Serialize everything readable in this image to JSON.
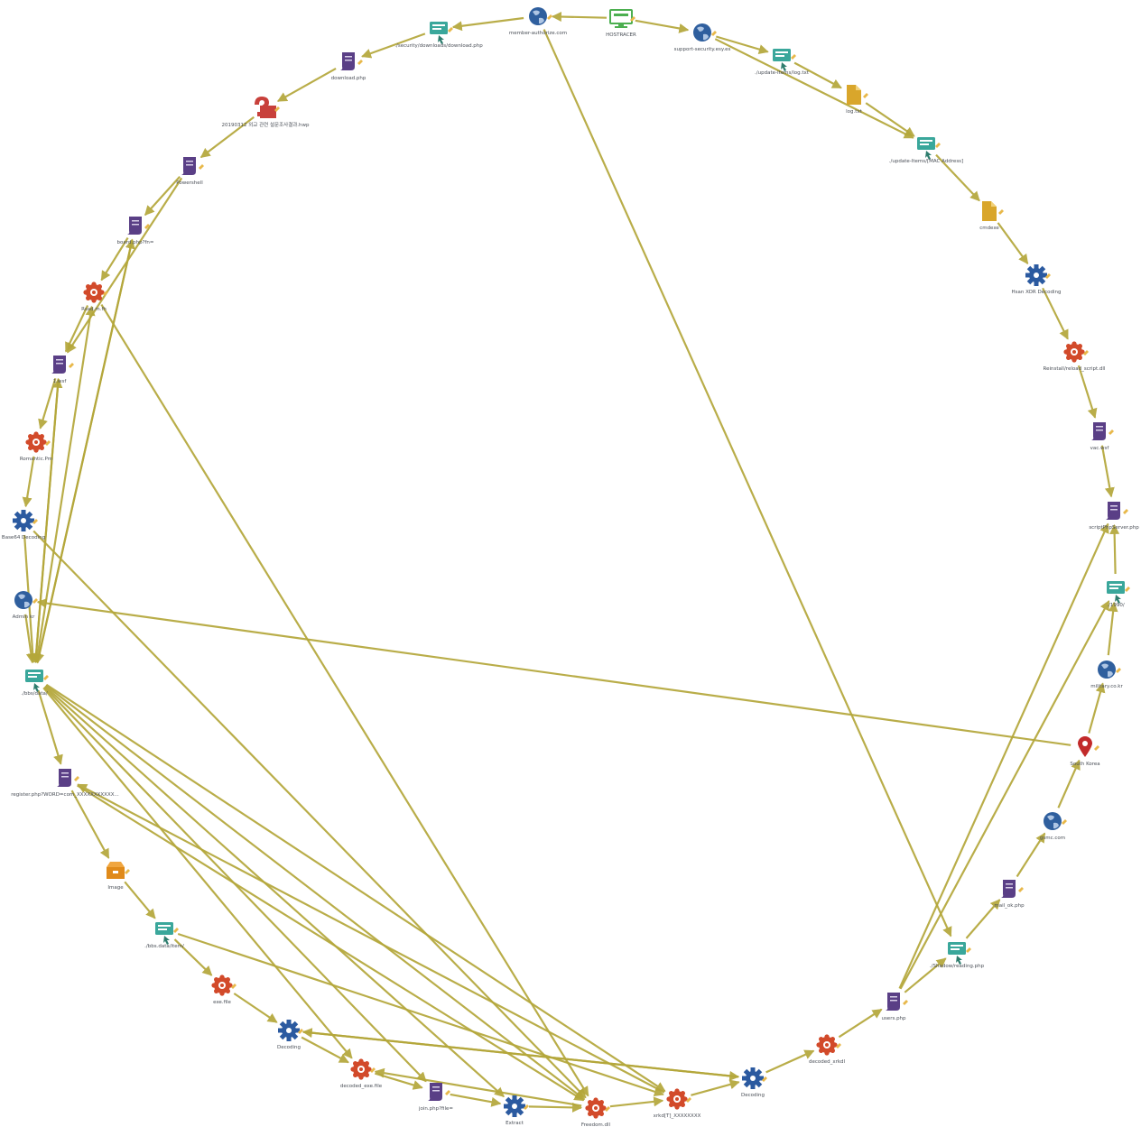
{
  "graph": {
    "nodes": [
      {
        "id": "hostracer",
        "label": "HOSTRACER",
        "icon": "monitor-icon"
      },
      {
        "id": "support",
        "label": "support-security.esy.es",
        "icon": "globe-icon"
      },
      {
        "id": "update_log",
        "label": "./update-Items/log.txt",
        "icon": "web-page-icon"
      },
      {
        "id": "log_txt",
        "label": "log.txt",
        "icon": "document-icon"
      },
      {
        "id": "update_mac",
        "label": "./update-Items/[MAC Address]",
        "icon": "web-page-icon"
      },
      {
        "id": "cmdtxt",
        "label": "cmdexe",
        "icon": "document-icon"
      },
      {
        "id": "xor_decoding",
        "label": "Hsan XOR Decoding",
        "icon": "gear-icon"
      },
      {
        "id": "reinstall",
        "label": "Reinstall/reload_script.dll",
        "icon": "malware-icon"
      },
      {
        "id": "vac_wsf",
        "label": "vac.wsf",
        "icon": "script-icon"
      },
      {
        "id": "scriptphp",
        "label": "scriptPhpServer.php",
        "icon": "script-icon"
      },
      {
        "id": "n1990",
        "label": "./1990/",
        "icon": "web-page-icon"
      },
      {
        "id": "military",
        "label": "military.co.kr",
        "icon": "globe-icon"
      },
      {
        "id": "south_korea",
        "label": "South Korea",
        "icon": "location-pin-icon"
      },
      {
        "id": "gsmc",
        "label": "gsmc.com",
        "icon": "globe-icon"
      },
      {
        "id": "mail_ok",
        "label": "mail_ok.php",
        "icon": "script-icon"
      },
      {
        "id": "shadow",
        "label": "./Shadow/reading.php",
        "icon": "web-page-icon"
      },
      {
        "id": "users_php",
        "label": "users.php",
        "icon": "script-icon"
      },
      {
        "id": "decoded_xrkb",
        "label": "decoded_xrkdl",
        "icon": "malware-icon"
      },
      {
        "id": "decoding_b",
        "label": "Decoding",
        "icon": "gear-icon"
      },
      {
        "id": "xrkd",
        "label": "xrkd[T]_XXXXXXXX",
        "icon": "malware-icon"
      },
      {
        "id": "freedom",
        "label": "Freedom.dll",
        "icon": "malware-icon"
      },
      {
        "id": "extract",
        "label": "Extract",
        "icon": "gear-icon"
      },
      {
        "id": "join_php",
        "label": "join.php?file=",
        "icon": "script-icon"
      },
      {
        "id": "decoded_exe",
        "label": "decoded_exe.file",
        "icon": "malware-icon"
      },
      {
        "id": "decoding_a",
        "label": "Decoding",
        "icon": "gear-icon"
      },
      {
        "id": "exe_file",
        "label": "exe.file",
        "icon": "malware-icon"
      },
      {
        "id": "bbs_item",
        "label": "./bbs.data/item/",
        "icon": "web-page-icon"
      },
      {
        "id": "image",
        "label": "Image",
        "icon": "archive-icon"
      },
      {
        "id": "register",
        "label": "register.php?WORD=com_XXXXXXXXXXX...",
        "icon": "script-icon"
      },
      {
        "id": "bbs_data",
        "label": "./bbs/data/",
        "icon": "web-page-icon"
      },
      {
        "id": "admin",
        "label": "Admin kr",
        "icon": "globe-icon"
      },
      {
        "id": "base64",
        "label": "Base64 Decoding",
        "icon": "gear-icon"
      },
      {
        "id": "romantic",
        "label": "Romantic.Pm",
        "icon": "malware-icon"
      },
      {
        "id": "wsf1",
        "label": "1.wsf",
        "icon": "script-icon"
      },
      {
        "id": "rsad",
        "label": "Rsad.m.fh",
        "icon": "malware-icon"
      },
      {
        "id": "board",
        "label": "board.php?fn=",
        "icon": "script-icon"
      },
      {
        "id": "powershell",
        "label": "Powershell",
        "icon": "script-icon"
      },
      {
        "id": "hwp",
        "label": "20190312 외교 관련 설문조사결과.hwp",
        "icon": "unknown-file-icon"
      },
      {
        "id": "download_php",
        "label": "download.php",
        "icon": "script-icon"
      },
      {
        "id": "security_dl",
        "label": "./security/downloads/download.php",
        "icon": "web-page-icon"
      },
      {
        "id": "member",
        "label": "member-authorize.com",
        "icon": "globe-icon"
      }
    ],
    "edges": [
      [
        "hostracer",
        "support"
      ],
      [
        "support",
        "update_log"
      ],
      [
        "update_log",
        "log_txt"
      ],
      [
        "log_txt",
        "update_mac"
      ],
      [
        "support",
        "update_mac"
      ],
      [
        "update_mac",
        "cmdtxt"
      ],
      [
        "cmdtxt",
        "xor_decoding"
      ],
      [
        "xor_decoding",
        "reinstall"
      ],
      [
        "reinstall",
        "vac_wsf"
      ],
      [
        "vac_wsf",
        "scriptphp"
      ],
      [
        "n1990",
        "scriptphp"
      ],
      [
        "military",
        "n1990"
      ],
      [
        "south_korea",
        "military"
      ],
      [
        "gsmc",
        "south_korea"
      ],
      [
        "mail_ok",
        "gsmc"
      ],
      [
        "shadow",
        "mail_ok"
      ],
      [
        "users_php",
        "scriptphp"
      ],
      [
        "users_php",
        "n1990"
      ],
      [
        "decoded_xrkb",
        "users_php"
      ],
      [
        "decoding_b",
        "decoded_xrkb"
      ],
      [
        "xrkd",
        "decoding_b"
      ],
      [
        "freedom",
        "xrkd"
      ],
      [
        "extract",
        "freedom"
      ],
      [
        "join_php",
        "extract"
      ],
      [
        "decoded_exe",
        "join_php"
      ],
      [
        "decoding_a",
        "decoded_exe"
      ],
      [
        "exe_file",
        "decoding_a"
      ],
      [
        "bbs_item",
        "exe_file"
      ],
      [
        "image",
        "bbs_item"
      ],
      [
        "register",
        "image"
      ],
      [
        "bbs_data",
        "register"
      ],
      [
        "admin",
        "bbs_data"
      ],
      [
        "base64",
        "bbs_data"
      ],
      [
        "romantic",
        "base64"
      ],
      [
        "wsf1",
        "romantic"
      ],
      [
        "rsad",
        "wsf1"
      ],
      [
        "board",
        "rsad"
      ],
      [
        "powershell",
        "board"
      ],
      [
        "hwp",
        "powershell"
      ],
      [
        "download_php",
        "hwp"
      ],
      [
        "security_dl",
        "download_php"
      ],
      [
        "member",
        "security_dl"
      ],
      [
        "hostracer",
        "member"
      ],
      [
        "member",
        "shadow"
      ],
      [
        "south_korea",
        "admin"
      ],
      [
        "decoding_a",
        "decoding_b"
      ],
      [
        "decoding_b",
        "decoding_a"
      ],
      [
        "freedom",
        "decoded_exe"
      ],
      [
        "xrkd",
        "register"
      ],
      [
        "bbs_data",
        "xrkd"
      ],
      [
        "bbs_data",
        "freedom"
      ],
      [
        "bbs_data",
        "extract"
      ],
      [
        "bbs_data",
        "decoded_exe"
      ],
      [
        "bbs_data",
        "board"
      ],
      [
        "bbs_data",
        "wsf1"
      ],
      [
        "wsf1",
        "bbs_data"
      ],
      [
        "rsad",
        "freedom"
      ],
      [
        "base64",
        "freedom"
      ],
      [
        "register",
        "freedom"
      ],
      [
        "bbs_item",
        "xrkd"
      ],
      [
        "powershell",
        "wsf1"
      ],
      [
        "board",
        "bbs_data"
      ],
      [
        "bbs_data",
        "rsad"
      ],
      [
        "bbs_data",
        "join_php"
      ],
      [
        "users_php",
        "shadow"
      ]
    ]
  },
  "colors": {
    "edge": "#b4a73a",
    "web_page": "#3aa79b",
    "globe": "#2f5f9e",
    "malware": "#d24a2a",
    "script": "#5a3f86",
    "document": "#d9a62b",
    "gear": "#2b5aa0",
    "pin": "#c22a2a",
    "monitor": "#4caf50",
    "archive": "#e08a1a",
    "unknown": "#c8403b"
  }
}
